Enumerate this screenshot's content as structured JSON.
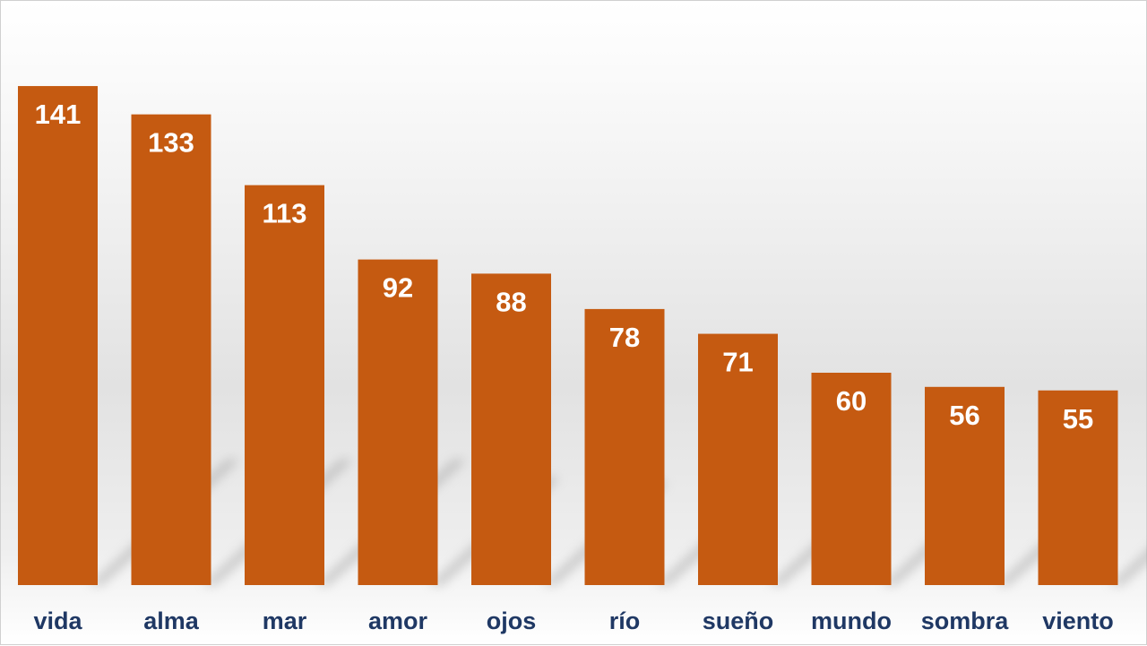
{
  "chart_data": {
    "type": "bar",
    "categories": [
      "vida",
      "alma",
      "mar",
      "amor",
      "ojos",
      "río",
      "sueño",
      "mundo",
      "sombra",
      "viento"
    ],
    "values": [
      141,
      133,
      113,
      92,
      88,
      78,
      71,
      60,
      56,
      55
    ],
    "title": "",
    "xlabel": "",
    "ylabel": "",
    "ylim": [
      0,
      160
    ],
    "grid": false,
    "legend": "none",
    "data_labels": "inside-top",
    "colors": {
      "bar": "#c55a11",
      "bar_label": "#ffffff",
      "category_label": "#1f3864",
      "background_top": "#ffffff",
      "background_mid": "#e2e2e2"
    }
  }
}
